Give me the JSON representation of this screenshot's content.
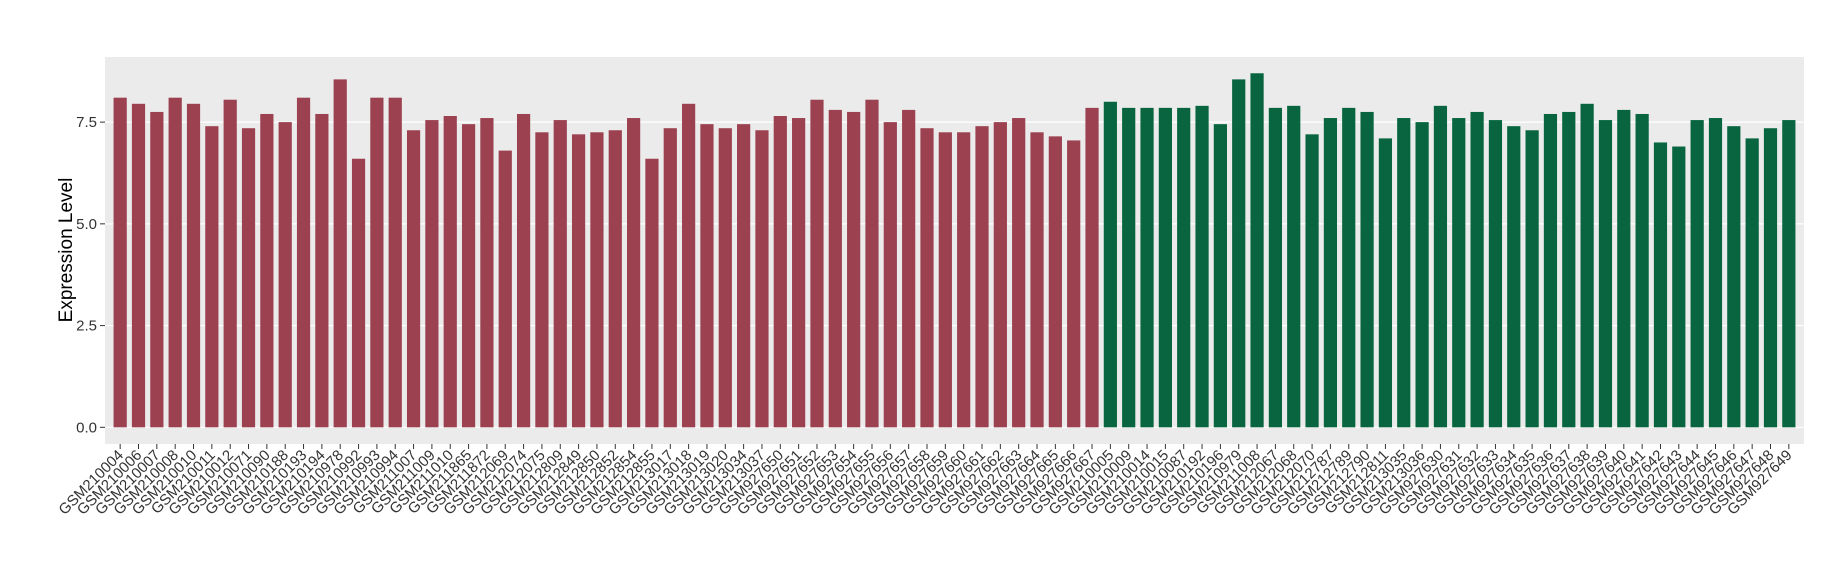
{
  "chart_data": {
    "type": "bar",
    "y_label": "Expression Level",
    "categories": [
      "GSM210004",
      "GSM210006",
      "GSM210007",
      "GSM210008",
      "GSM210010",
      "GSM210011",
      "GSM210012",
      "GSM210071",
      "GSM210090",
      "GSM210188",
      "GSM210193",
      "GSM210194",
      "GSM210978",
      "GSM210992",
      "GSM210993",
      "GSM210994",
      "GSM211007",
      "GSM211009",
      "GSM211010",
      "GSM211865",
      "GSM211872",
      "GSM212069",
      "GSM212074",
      "GSM212075",
      "GSM212809",
      "GSM212849",
      "GSM212850",
      "GSM212852",
      "GSM212854",
      "GSM212855",
      "GSM213017",
      "GSM213018",
      "GSM213019",
      "GSM213020",
      "GSM213034",
      "GSM213037",
      "GSM927650",
      "GSM927651",
      "GSM927652",
      "GSM927653",
      "GSM927654",
      "GSM927655",
      "GSM927656",
      "GSM927657",
      "GSM927658",
      "GSM927659",
      "GSM927660",
      "GSM927661",
      "GSM927662",
      "GSM927663",
      "GSM927664",
      "GSM927665",
      "GSM927666",
      "GSM927667",
      "GSM210005",
      "GSM210009",
      "GSM210014",
      "GSM210015",
      "GSM210087",
      "GSM210192",
      "GSM210196",
      "GSM210979",
      "GSM211008",
      "GSM212067",
      "GSM212068",
      "GSM212070",
      "GSM212787",
      "GSM212789",
      "GSM212790",
      "GSM212811",
      "GSM213035",
      "GSM213036",
      "GSM927630",
      "GSM927631",
      "GSM927632",
      "GSM927633",
      "GSM927634",
      "GSM927635",
      "GSM927636",
      "GSM927637",
      "GSM927638",
      "GSM927639",
      "GSM927640",
      "GSM927641",
      "GSM927642",
      "GSM927643",
      "GSM927644",
      "GSM927645",
      "GSM927646",
      "GSM927647",
      "GSM927648",
      "GSM927649"
    ],
    "values": [
      8.1,
      7.95,
      7.75,
      8.1,
      7.95,
      7.4,
      8.05,
      7.35,
      7.7,
      7.5,
      8.1,
      7.7,
      8.55,
      6.6,
      8.1,
      8.1,
      7.3,
      7.55,
      7.65,
      7.45,
      7.6,
      6.8,
      7.7,
      7.25,
      7.55,
      7.2,
      7.25,
      7.3,
      7.6,
      6.6,
      7.35,
      7.95,
      7.45,
      7.35,
      7.45,
      7.3,
      7.65,
      7.6,
      8.05,
      7.8,
      7.75,
      8.05,
      7.5,
      7.8,
      7.35,
      7.25,
      7.25,
      7.4,
      7.5,
      7.6,
      7.25,
      7.15,
      7.05,
      7.85,
      8.0,
      7.85,
      7.85,
      7.85,
      7.85,
      7.9,
      7.45,
      8.55,
      8.7,
      7.85,
      7.9,
      7.2,
      7.6,
      7.85,
      7.75,
      7.1,
      7.6,
      7.5,
      7.9,
      7.6,
      7.75,
      7.55,
      7.4,
      7.3,
      7.7,
      7.75,
      7.95,
      7.55,
      7.8,
      7.7,
      7.0,
      6.9,
      7.55,
      7.6,
      7.4,
      7.1,
      7.35,
      7.55
    ],
    "colors": [
      "#9b4150",
      "#9b4150",
      "#9b4150",
      "#9b4150",
      "#9b4150",
      "#9b4150",
      "#9b4150",
      "#9b4150",
      "#9b4150",
      "#9b4150",
      "#9b4150",
      "#9b4150",
      "#9b4150",
      "#9b4150",
      "#9b4150",
      "#9b4150",
      "#9b4150",
      "#9b4150",
      "#9b4150",
      "#9b4150",
      "#9b4150",
      "#9b4150",
      "#9b4150",
      "#9b4150",
      "#9b4150",
      "#9b4150",
      "#9b4150",
      "#9b4150",
      "#9b4150",
      "#9b4150",
      "#9b4150",
      "#9b4150",
      "#9b4150",
      "#9b4150",
      "#9b4150",
      "#9b4150",
      "#9b4150",
      "#9b4150",
      "#9b4150",
      "#9b4150",
      "#9b4150",
      "#9b4150",
      "#9b4150",
      "#9b4150",
      "#9b4150",
      "#9b4150",
      "#9b4150",
      "#9b4150",
      "#9b4150",
      "#9b4150",
      "#9b4150",
      "#9b4150",
      "#9b4150",
      "#9b4150",
      "#08653f",
      "#08653f",
      "#08653f",
      "#08653f",
      "#08653f",
      "#08653f",
      "#08653f",
      "#08653f",
      "#08653f",
      "#08653f",
      "#08653f",
      "#08653f",
      "#08653f",
      "#08653f",
      "#08653f",
      "#08653f",
      "#08653f",
      "#08653f",
      "#08653f",
      "#08653f",
      "#08653f",
      "#08653f",
      "#08653f",
      "#08653f",
      "#08653f",
      "#08653f",
      "#08653f",
      "#08653f",
      "#08653f",
      "#08653f",
      "#08653f",
      "#08653f",
      "#08653f",
      "#08653f",
      "#08653f",
      "#08653f",
      "#08653f",
      "#08653f"
    ],
    "ylim": [
      -0.41,
      9.1
    ],
    "yticks": [
      {
        "value": 0,
        "label": "0.0"
      },
      {
        "value": 2.5,
        "label": "2.5"
      },
      {
        "value": 5,
        "label": "5.0"
      },
      {
        "value": 7.5,
        "label": "7.5"
      }
    ],
    "grid": true
  }
}
